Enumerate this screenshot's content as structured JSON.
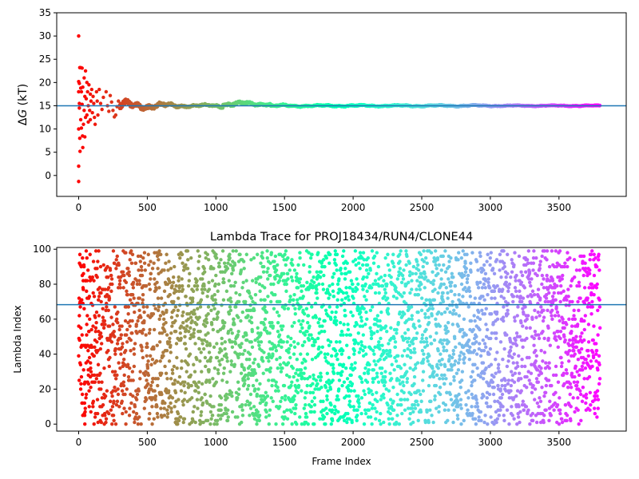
{
  "chart_data": [
    {
      "type": "scatter",
      "title": "",
      "xlabel": "",
      "ylabel": "ΔG (kT)",
      "ylabel_parts": {
        "delta": "Δ",
        "var": "G",
        "unit": " (kT)"
      },
      "xlim": [
        -160,
        3990
      ],
      "ylim": [
        -4.5,
        35
      ],
      "xticks": [
        0,
        500,
        1000,
        1500,
        2000,
        2500,
        3000,
        3500
      ],
      "yticks": [
        0,
        5,
        10,
        15,
        20,
        25,
        30,
        35
      ],
      "hline": {
        "y": 15.0,
        "color": "#1f77b4"
      },
      "colormap": "rainbow (reversed: red at frame 0, violet at last frame)",
      "frame_count": 3800,
      "marker_size": 2.2,
      "early_points": [
        [
          0,
          30.0
        ],
        [
          0,
          20.2
        ],
        [
          0,
          18.0
        ],
        [
          0,
          10.0
        ],
        [
          0,
          2.0
        ],
        [
          0,
          -1.3
        ],
        [
          5,
          19.8
        ],
        [
          5,
          15.5
        ],
        [
          5,
          14.5
        ],
        [
          8,
          23.2
        ],
        [
          8,
          8.0
        ],
        [
          10,
          5.2
        ],
        [
          15,
          23.2
        ],
        [
          15,
          18.8
        ],
        [
          15,
          12.0
        ],
        [
          20,
          18.0
        ],
        [
          20,
          10.2
        ],
        [
          25,
          23.1
        ],
        [
          25,
          15.3
        ],
        [
          28,
          8.5
        ],
        [
          30,
          19.0
        ],
        [
          30,
          6.0
        ],
        [
          35,
          11.0
        ],
        [
          40,
          21.0
        ],
        [
          40,
          14.0
        ],
        [
          45,
          17.0
        ],
        [
          45,
          8.3
        ],
        [
          50,
          22.5
        ],
        [
          50,
          12.5
        ],
        [
          55,
          16.5
        ],
        [
          60,
          20.0
        ],
        [
          60,
          13.0
        ],
        [
          65,
          18.0
        ],
        [
          70,
          15.0
        ],
        [
          70,
          11.5
        ],
        [
          75,
          19.5
        ],
        [
          80,
          14.0
        ],
        [
          85,
          17.5
        ],
        [
          85,
          12.0
        ],
        [
          90,
          16.0
        ],
        [
          95,
          18.5
        ],
        [
          100,
          13.5
        ],
        [
          105,
          17.0
        ],
        [
          110,
          15.5
        ],
        [
          115,
          12.5
        ],
        [
          120,
          11.0
        ],
        [
          130,
          18.0
        ],
        [
          135,
          16.0
        ],
        [
          140,
          13.0
        ],
        [
          150,
          18.5
        ],
        [
          160,
          15.5
        ],
        [
          170,
          14.2
        ],
        [
          180,
          16.8
        ],
        [
          200,
          18.0
        ],
        [
          210,
          15.0
        ],
        [
          220,
          13.8
        ],
        [
          230,
          17.2
        ],
        [
          240,
          15.8
        ],
        [
          250,
          14.0
        ],
        [
          260,
          12.6
        ],
        [
          270,
          13.0
        ],
        [
          280,
          14.8
        ],
        [
          290,
          16.0
        ],
        [
          300,
          15.2
        ]
      ],
      "envelope": [
        [
          300,
          1.3
        ],
        [
          400,
          1.0
        ],
        [
          500,
          0.9
        ],
        [
          600,
          0.8
        ],
        [
          700,
          0.5
        ],
        [
          800,
          0.35
        ],
        [
          1000,
          0.35
        ],
        [
          1100,
          0.65
        ],
        [
          1300,
          0.45
        ],
        [
          1500,
          0.3
        ],
        [
          1700,
          0.22
        ],
        [
          2000,
          0.22
        ],
        [
          2500,
          0.2
        ],
        [
          2900,
          0.2
        ],
        [
          3100,
          0.15
        ],
        [
          3800,
          0.12
        ]
      ]
    },
    {
      "type": "scatter",
      "title": "Lambda Trace for PROJ18434/RUN4/CLONE44",
      "xlabel": "Frame Index",
      "ylabel": "Lambda Index",
      "xlim": [
        -160,
        3990
      ],
      "ylim": [
        -4,
        101
      ],
      "xticks": [
        0,
        500,
        1000,
        1500,
        2000,
        2500,
        3000,
        3500
      ],
      "yticks": [
        0,
        20,
        40,
        60,
        80,
        100
      ],
      "hline": {
        "y": 68.3,
        "color": "#1f77b4"
      },
      "colormap": "rainbow (reversed: red at frame 0, violet at last frame)",
      "frame_count": 3800,
      "point_count": 3800,
      "lambda_range": [
        0,
        99
      ],
      "marker_size": 2.2
    }
  ]
}
